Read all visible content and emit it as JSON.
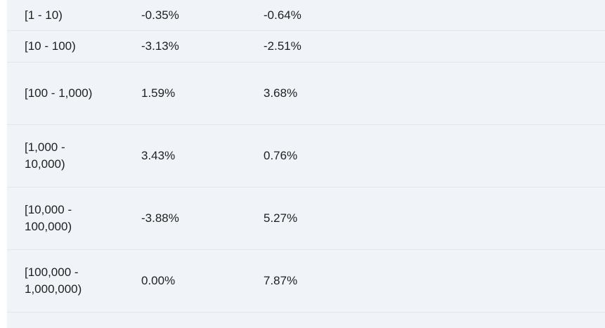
{
  "table": {
    "rows": [
      {
        "range": "[1 - 10)",
        "value_a": "-0.35%",
        "value_b": "-0.64%"
      },
      {
        "range": "[10 - 100)",
        "value_a": "-3.13%",
        "value_b": "-2.51%"
      },
      {
        "range": "[100 - 1,000)",
        "value_a": "1.59%",
        "value_b": "3.68%"
      },
      {
        "range": "[1,000 - 10,000)",
        "value_a": "3.43%",
        "value_b": "0.76%"
      },
      {
        "range": "[10,000 - 100,000)",
        "value_a": "-3.88%",
        "value_b": "5.27%"
      },
      {
        "range": "[100,000 - 1,000,000)",
        "value_a": "0.00%",
        "value_b": "7.87%"
      }
    ]
  }
}
